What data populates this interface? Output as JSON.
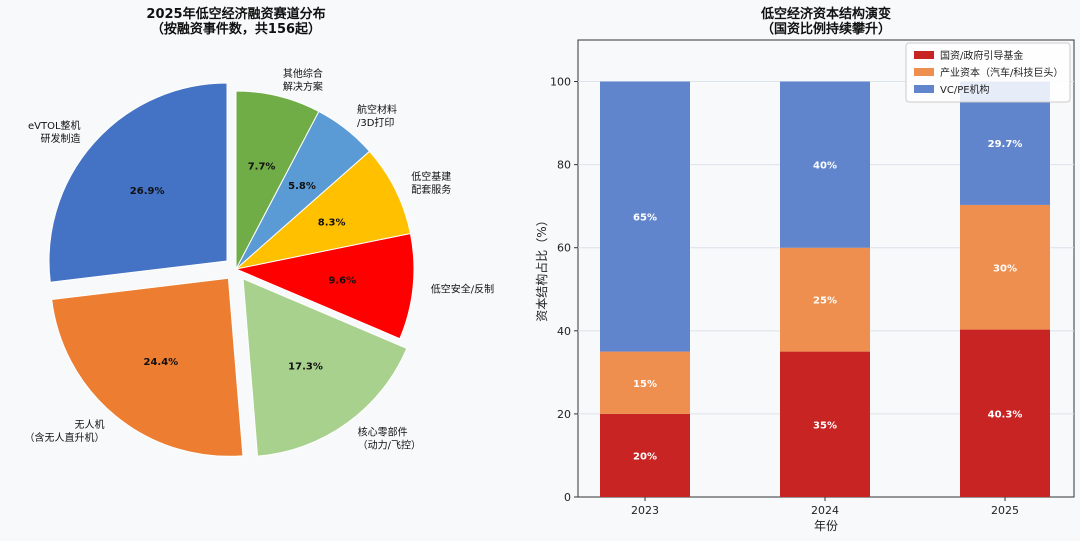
{
  "chart_data": [
    {
      "type": "pie",
      "title": "2025年低空经济融资赛道分布",
      "subtitle": "（按融资事件数，共156起）",
      "categories": [
        "eVTOL整机\n研发制造",
        "无人机\n（含无人直升机）",
        "核心零部件\n（动力/飞控）",
        "低空安全/反制",
        "低空基建\n配套服务",
        "航空材料\n/3D打印",
        "其他综合\n解决方案"
      ],
      "values": [
        26.9,
        24.4,
        17.3,
        9.6,
        8.3,
        5.8,
        7.7
      ],
      "value_labels": [
        "26.9%",
        "24.4%",
        "17.3%",
        "9.6%",
        "8.3%",
        "5.8%",
        "7.7%"
      ],
      "colors": [
        "#4472c4",
        "#ed7d31",
        "#a9d18e",
        "#ff0000",
        "#ffc000",
        "#5b9bd5",
        "#70ad47"
      ],
      "exploded": [
        "eVTOL整机\n研发制造",
        "无人机\n（含无人直升机）",
        "核心零部件\n（动力/飞控）"
      ],
      "start_angle_deg": 90,
      "direction": "counterclockwise"
    },
    {
      "type": "bar",
      "stacked": true,
      "title": "低空经济资本结构演变",
      "subtitle": "（国资比例持续攀升）",
      "categories": [
        "2023",
        "2024",
        "2025"
      ],
      "series": [
        {
          "name": "国资/政府引导基金",
          "values": [
            20,
            35,
            40.3
          ],
          "labels": [
            "20%",
            "35%",
            "40.3%"
          ],
          "color": "#c82423"
        },
        {
          "name": "产业资本（汽车/科技巨头）",
          "values": [
            15,
            25,
            30
          ],
          "labels": [
            "15%",
            "25%",
            "30%"
          ],
          "color": "#ee8f4f"
        },
        {
          "name": "VC/PE机构",
          "values": [
            65,
            40,
            29.7
          ],
          "labels": [
            "65%",
            "40%",
            "29.7%"
          ],
          "color": "#6185cd"
        }
      ],
      "xlabel": "年份",
      "ylabel": "资本结构占比（%）",
      "ylim": [
        0,
        110
      ],
      "yticks": [
        0,
        20,
        40,
        60,
        80,
        100
      ],
      "grid": true,
      "legend": "top-right"
    }
  ]
}
